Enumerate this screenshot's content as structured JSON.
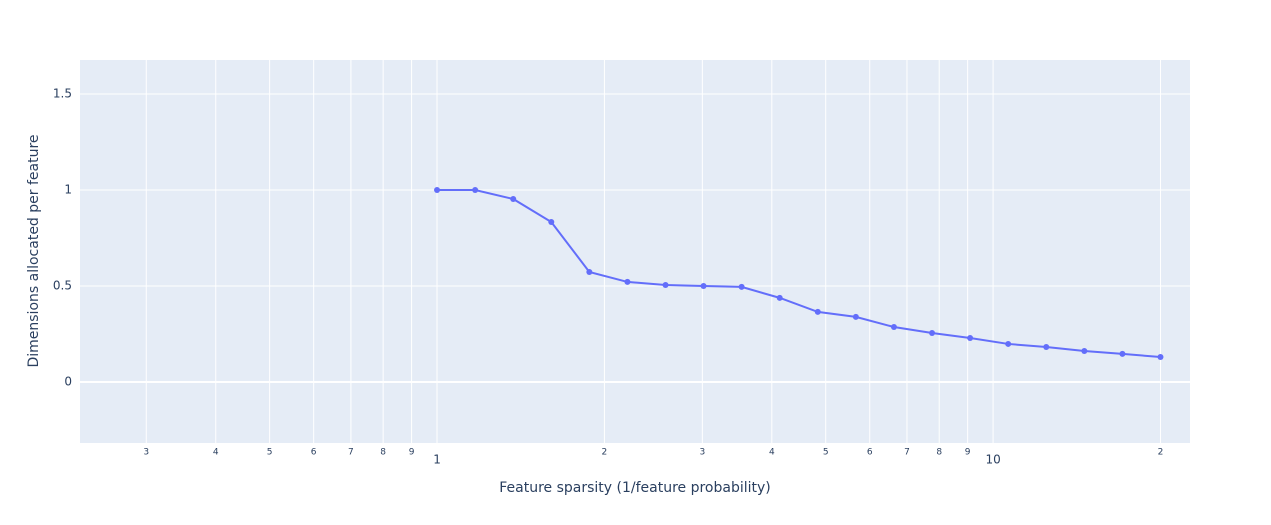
{
  "chart_data": {
    "type": "line",
    "x_label": "Feature sparsity (1/feature probability)",
    "y_label": "Dimensions allocated per feature",
    "xscale": "log",
    "x": [
      1,
      1.171,
      1.371,
      1.605,
      1.879,
      2.2,
      2.576,
      3.015,
      3.53,
      4.133,
      4.839,
      5.665,
      6.633,
      7.766,
      9.092,
      10.645,
      12.462,
      14.591,
      17.083,
      20
    ],
    "values": [
      1.0,
      1.0,
      0.953,
      0.833,
      0.573,
      0.521,
      0.505,
      0.5,
      0.495,
      0.438,
      0.365,
      0.339,
      0.286,
      0.255,
      0.229,
      0.198,
      0.182,
      0.161,
      0.146,
      0.13
    ],
    "color": "#636efa",
    "xlim": [
      0.228,
      22.6
    ],
    "ylim": [
      -0.318,
      1.677
    ],
    "xticks": [
      {
        "value": 0.3,
        "label": "3"
      },
      {
        "value": 0.4,
        "label": "4"
      },
      {
        "value": 0.5,
        "label": "5"
      },
      {
        "value": 0.6,
        "label": "6"
      },
      {
        "value": 0.7,
        "label": "7"
      },
      {
        "value": 0.8,
        "label": "8"
      },
      {
        "value": 0.9,
        "label": "9"
      },
      1,
      2,
      3,
      4,
      5,
      6,
      7,
      8,
      9,
      10,
      {
        "value": 20,
        "label": "2"
      }
    ],
    "yticks": [
      0,
      0.5,
      1,
      1.5
    ],
    "grid": true
  }
}
